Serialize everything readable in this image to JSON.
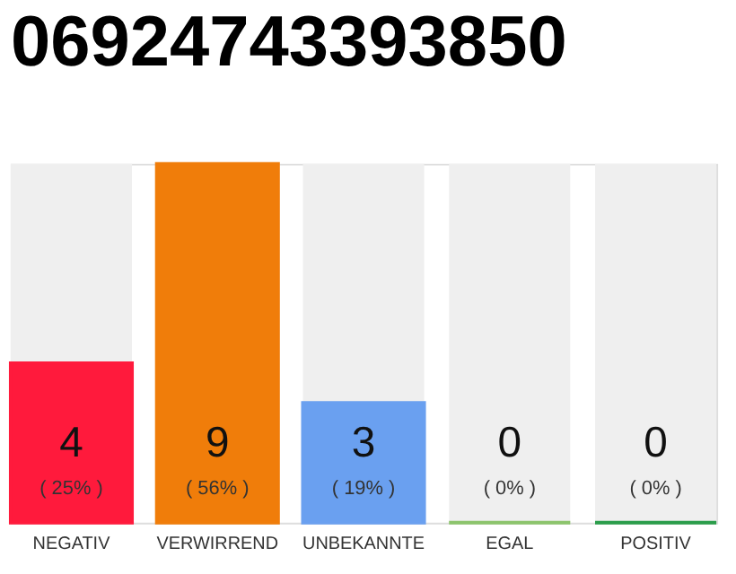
{
  "chart_data": {
    "type": "bar",
    "title": "06924743393850",
    "categories": [
      "NEGATIV",
      "VERWIRREND",
      "UNBEKANNTE",
      "EGAL",
      "POSITIV"
    ],
    "values": [
      4,
      9,
      3,
      0,
      0
    ],
    "colors": [
      "#ff1a3c",
      "#f07d0a",
      "#6aa0f0",
      "#8cc46c",
      "#2a9d4a"
    ],
    "data_labels": true,
    "annotations": [
      "( 25% )",
      "( 56% )",
      "( 19% )",
      "( 0% )",
      "( 0% )"
    ]
  }
}
